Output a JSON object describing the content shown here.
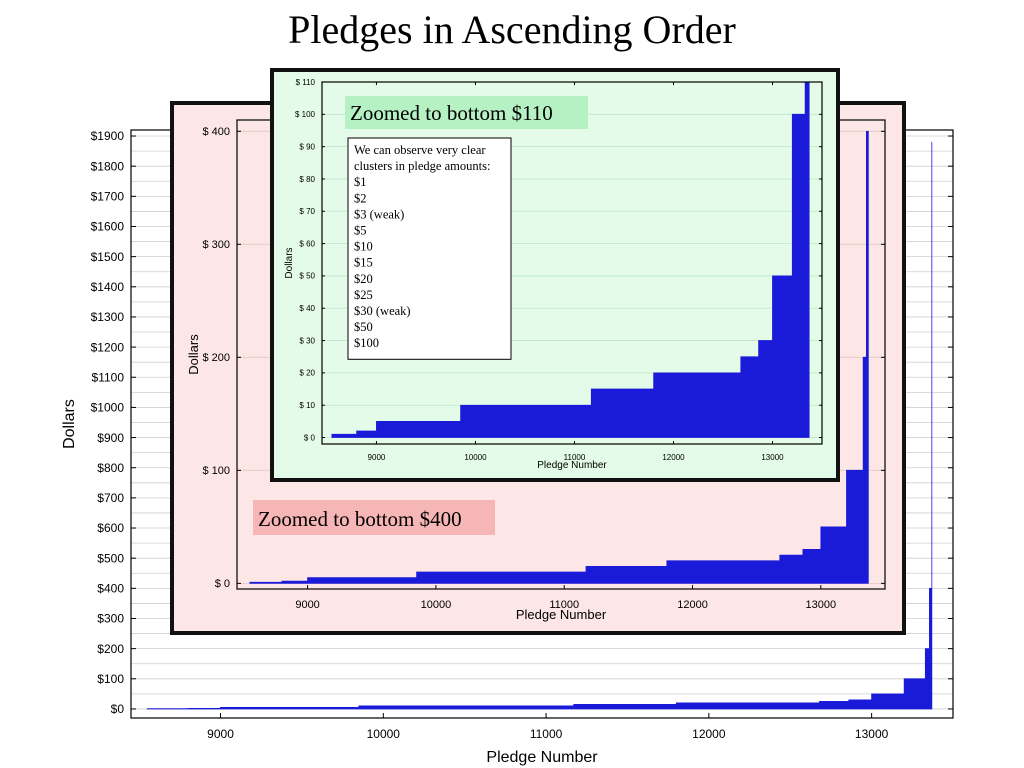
{
  "page": {
    "title": "Pledges in Ascending Order"
  },
  "chart_data": [
    {
      "id": "main",
      "type": "area",
      "xlabel": "Pledge Number",
      "ylabel": "Dollars",
      "xlim": [
        8450,
        13500
      ],
      "ylim": [
        -30,
        1920
      ],
      "x_ticks": [
        9000,
        10000,
        11000,
        12000,
        13000
      ],
      "y_ticks": [
        0,
        100,
        200,
        300,
        400,
        500,
        600,
        700,
        800,
        900,
        1000,
        1100,
        1200,
        1300,
        1400,
        1500,
        1600,
        1700,
        1800,
        1900
      ],
      "y_tick_prefix": "$",
      "grid": true,
      "series_color": "#1a1ad9",
      "x": [
        8550,
        8800,
        8800,
        9000,
        9000,
        9520,
        9520,
        9850,
        9850,
        10200,
        10200,
        11170,
        11170,
        11800,
        11800,
        12680,
        12680,
        12860,
        12860,
        13000,
        13000,
        13050,
        13050,
        13200,
        13200,
        13260,
        13260,
        13330,
        13330,
        13355,
        13355,
        13370,
        13370
      ],
      "y": [
        1,
        1,
        2,
        2,
        5,
        5,
        5,
        5,
        10,
        10,
        10,
        10,
        15,
        15,
        20,
        20,
        25,
        25,
        30,
        30,
        50,
        50,
        50,
        50,
        100,
        100,
        100,
        100,
        200,
        200,
        400,
        400,
        1880
      ]
    },
    {
      "id": "zoom400",
      "type": "area",
      "xlabel": "Pledge Number",
      "ylabel": "Dollars",
      "xlim": [
        8450,
        13500
      ],
      "ylim": [
        -5,
        410
      ],
      "x_ticks": [
        9000,
        10000,
        11000,
        12000,
        13000
      ],
      "y_ticks": [
        0,
        100,
        200,
        300,
        400
      ],
      "y_tick_prefix": "$ ",
      "grid": true,
      "series_color": "#1a1ad9",
      "annotation": "Zoomed to bottom $400",
      "x": [
        8550,
        8800,
        8800,
        9000,
        9000,
        9520,
        9520,
        9850,
        9850,
        10200,
        10200,
        11170,
        11170,
        11800,
        11800,
        12680,
        12680,
        12860,
        12860,
        13000,
        13000,
        13050,
        13050,
        13200,
        13200,
        13260,
        13260,
        13330,
        13330,
        13355,
        13355,
        13370,
        13370
      ],
      "y": [
        1,
        1,
        2,
        2,
        5,
        5,
        5,
        5,
        10,
        10,
        10,
        10,
        15,
        15,
        20,
        20,
        25,
        25,
        30,
        30,
        50,
        50,
        50,
        50,
        100,
        100,
        100,
        100,
        200,
        200,
        400,
        400,
        400
      ]
    },
    {
      "id": "zoom110",
      "type": "area",
      "xlabel": "Pledge Number",
      "ylabel": "Dollars",
      "xlim": [
        8450,
        13500
      ],
      "ylim": [
        -2,
        110
      ],
      "x_ticks": [
        9000,
        10000,
        11000,
        12000,
        13000
      ],
      "y_ticks": [
        0,
        10,
        20,
        30,
        40,
        50,
        60,
        70,
        80,
        90,
        100,
        110
      ],
      "y_tick_prefix": "$ ",
      "grid": true,
      "series_color": "#1a1ad9",
      "annotation": "Zoomed to bottom $110",
      "x": [
        8550,
        8800,
        8800,
        9000,
        9000,
        9520,
        9520,
        9850,
        9850,
        10200,
        10200,
        11170,
        11170,
        11800,
        11800,
        12680,
        12680,
        12860,
        12860,
        13000,
        13000,
        13050,
        13050,
        13200,
        13200,
        13330,
        13330,
        13370,
        13370
      ],
      "y": [
        1,
        1,
        2,
        2,
        5,
        5,
        5,
        5,
        10,
        10,
        10,
        10,
        15,
        15,
        20,
        20,
        25,
        25,
        30,
        30,
        50,
        50,
        50,
        50,
        100,
        100,
        110,
        110,
        110
      ]
    }
  ],
  "note": {
    "lines": [
      "We can observe very clear",
      "clusters in pledge amounts:",
      "$1",
      "$2",
      "$3 (weak)",
      "$5",
      "$10",
      "$15",
      "$20",
      "$25",
      "$30 (weak)",
      "$50",
      "$100"
    ]
  },
  "colors": {
    "zoom400_bg": "#fde6e6",
    "zoom400_label_bg": "#f7b6b6",
    "zoom110_bg": "#e3fbe8",
    "zoom110_label_bg": "#b6f1c3"
  }
}
